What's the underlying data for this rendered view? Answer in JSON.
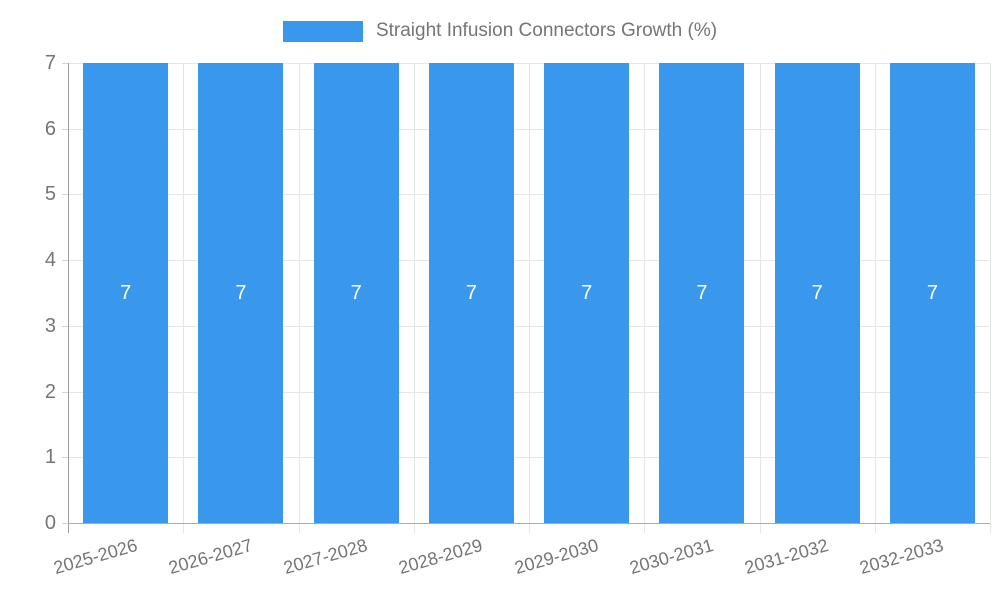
{
  "legend": {
    "label": "Straight Infusion Connectors Growth (%)"
  },
  "chart_data": {
    "type": "bar",
    "title": "Straight Infusion Connectors Growth (%)",
    "categories": [
      "2025-2026",
      "2026-2027",
      "2027-2028",
      "2028-2029",
      "2029-2030",
      "2030-2031",
      "2031-2032",
      "2032-2033"
    ],
    "values": [
      7,
      7,
      7,
      7,
      7,
      7,
      7,
      7
    ],
    "bar_value_labels": [
      "7",
      "7",
      "7",
      "7",
      "7",
      "7",
      "7",
      "7"
    ],
    "xlabel": "",
    "ylabel": "",
    "ylim": [
      0,
      7
    ],
    "ytick_step": 1,
    "ytick_labels": [
      "0",
      "1",
      "2",
      "3",
      "4",
      "5",
      "6",
      "7"
    ],
    "grid": true,
    "legend_position": "top",
    "colors": {
      "bar": "#3998ec",
      "grid": "#e6e6e6",
      "axis": "#9e9e9e",
      "tick_label": "#757575",
      "value_label": "#ffffff",
      "background": "#ffffff"
    }
  }
}
